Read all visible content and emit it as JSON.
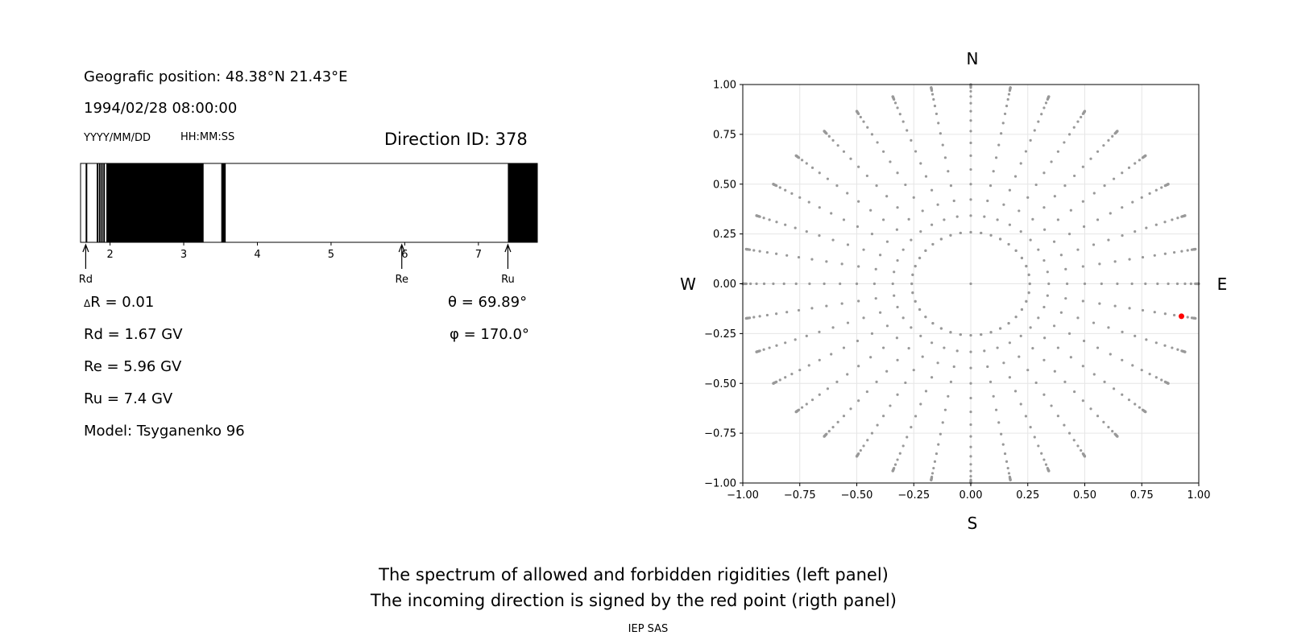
{
  "left_panel": {
    "position_text": "Geografic position: 48.38°N 21.43°E",
    "datetime": "1994/02/28 08:00:00",
    "date_format": "YYYY/MM/DD",
    "time_format": "HH:MM:SS",
    "direction_id": "Direction ID: 378",
    "params": {
      "delta_r": "R = 0.01",
      "delta_symbol": "Δ",
      "rd": "Rd = 1.67 GV",
      "re": "Re = 5.96 GV",
      "ru": "Ru = 7.4 GV",
      "model": "Model: Tsyganenko 96",
      "theta": "θ = 69.89°",
      "phi": "φ = 170.0°"
    }
  },
  "spectrum_chart": {
    "type": "spectrum",
    "xlim": [
      1.6,
      7.8
    ],
    "tick_labels": [
      "2",
      "3",
      "4",
      "5",
      "6",
      "7"
    ],
    "tick_values": [
      2,
      3,
      4,
      5,
      6,
      7
    ],
    "forbidden_intervals": [
      [
        1.95,
        3.27
      ],
      [
        3.51,
        3.57
      ],
      [
        7.4,
        7.8
      ]
    ],
    "forbidden_thin_lines": [
      1.68,
      1.83,
      1.86,
      1.89,
      1.92
    ],
    "markers": [
      {
        "label": "Rd",
        "value": 1.67
      },
      {
        "label": "Re",
        "value": 5.96
      },
      {
        "label": "Ru",
        "value": 7.4
      }
    ]
  },
  "chart_data": {
    "type": "scatter",
    "title": "",
    "xlabel": "",
    "ylabel": "",
    "xlim": [
      -1.0,
      1.0
    ],
    "ylim": [
      -1.0,
      1.0
    ],
    "x_tick_labels": [
      "−1.00",
      "−0.75",
      "−0.50",
      "−0.25",
      "0.00",
      "0.25",
      "0.50",
      "0.75",
      "1.00"
    ],
    "y_tick_labels": [
      "1.00",
      "0.75",
      "0.50",
      "0.25",
      "0.00",
      "−0.25",
      "−0.50",
      "−0.75",
      "−1.00"
    ],
    "tick_values": [
      -1.0,
      -0.75,
      -0.5,
      -0.25,
      0.0,
      0.25,
      0.5,
      0.75,
      1.0
    ],
    "grid": true,
    "compass": {
      "north": "N",
      "south": "S",
      "east": "E",
      "west": "W"
    },
    "pattern": {
      "description": "Grid of incoming directions: concentric rings of zenith angle, radial spokes of azimuth every 10 degrees",
      "zenith_step_deg": 5,
      "zenith_max_deg": 85,
      "azimuth_step_deg": 10,
      "inner_ring_zenith_deg": 15,
      "point_color": "#999999"
    },
    "highlight_point": {
      "theta_deg": 69.89,
      "phi_deg": 170.0,
      "x": 0.924,
      "y": -0.163,
      "color": "#ff0000"
    }
  },
  "footer": {
    "line1": "The spectrum of allowed and forbidden rigidities (left panel)",
    "line2": "The incoming direction is signed by the red point (rigth panel)",
    "credit": "IEP SAS"
  }
}
